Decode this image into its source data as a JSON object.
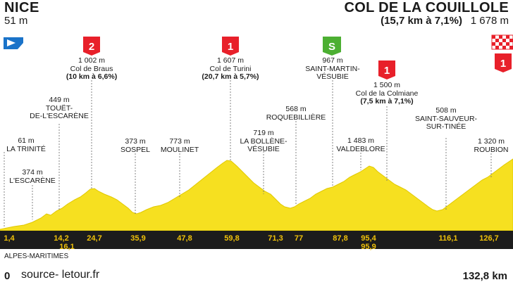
{
  "start": {
    "name": "NICE",
    "altitude": "51 m"
  },
  "finish": {
    "name": "COL DE LA COUILLOLE",
    "detail": "(15,7 km à 7,1%)",
    "altitude": "1 678 m"
  },
  "climbs": [
    {
      "category": "2",
      "alt": "1 002 m",
      "name": "Col de Braus",
      "detail": "(10 km à 6,6%)"
    },
    {
      "category": "1",
      "alt": "1 607 m",
      "name": "Col de Turini",
      "detail": "(20,7 km à 5,7%)"
    },
    {
      "category": "1",
      "alt": "1 500 m",
      "name": "Col de la Colmiane",
      "detail": "(7,5 km à 7,1%)"
    },
    {
      "category": "1"
    }
  ],
  "sprint": {
    "label": "S",
    "alt": "967 m",
    "name_line1": "SAINT-MARTIN-",
    "name_line2": "VÉSUBIE"
  },
  "towns": [
    {
      "alt": "61 m",
      "line1": "LA TRINITÉ"
    },
    {
      "alt": "374 m",
      "line1": "L'ESCARÈNE"
    },
    {
      "alt": "449 m",
      "line1": "TOUËT-",
      "line2": "DE-L'ESCARÈNE"
    },
    {
      "alt": "373 m",
      "line1": "SOSPEL"
    },
    {
      "alt": "773 m",
      "line1": "MOULINET"
    },
    {
      "alt": "719 m",
      "line1": "LA BOLLÈNE-",
      "line2": "VÉSUBIE"
    },
    {
      "alt": "568 m",
      "line1": "ROQUEBILLIÈRE"
    },
    {
      "alt": "1 483 m",
      "line1": "VALDEBLORE"
    },
    {
      "alt": "508 m",
      "line1": "SAINT-SAUVEUR-",
      "line2": "SUR-TINÉE"
    },
    {
      "alt": "1 320 m",
      "line1": "ROUBION"
    }
  ],
  "km_marks": [
    "1,4",
    "14,2",
    "16,1",
    "24,7",
    "35,9",
    "47,8",
    "59,8",
    "71,3",
    "77",
    "87,8",
    "95,4",
    "95,9",
    "116,1",
    "126,7"
  ],
  "region": "ALPES-MARITIMES",
  "axis_start": "0",
  "axis_end": "132,8 km",
  "source": "source- letour.fr",
  "colors": {
    "profile_fill": "#f6e020",
    "profile_dark": "#d9c200",
    "cat_red": "#e8202a",
    "sprint_green": "#4caf32",
    "start_blue": "#1a73c9",
    "axis_bg": "#1c1c1c",
    "axis_text": "#f0c20a"
  },
  "icons": {
    "start": "start-flag-icon",
    "finish": "checkered-flag-icon"
  }
}
